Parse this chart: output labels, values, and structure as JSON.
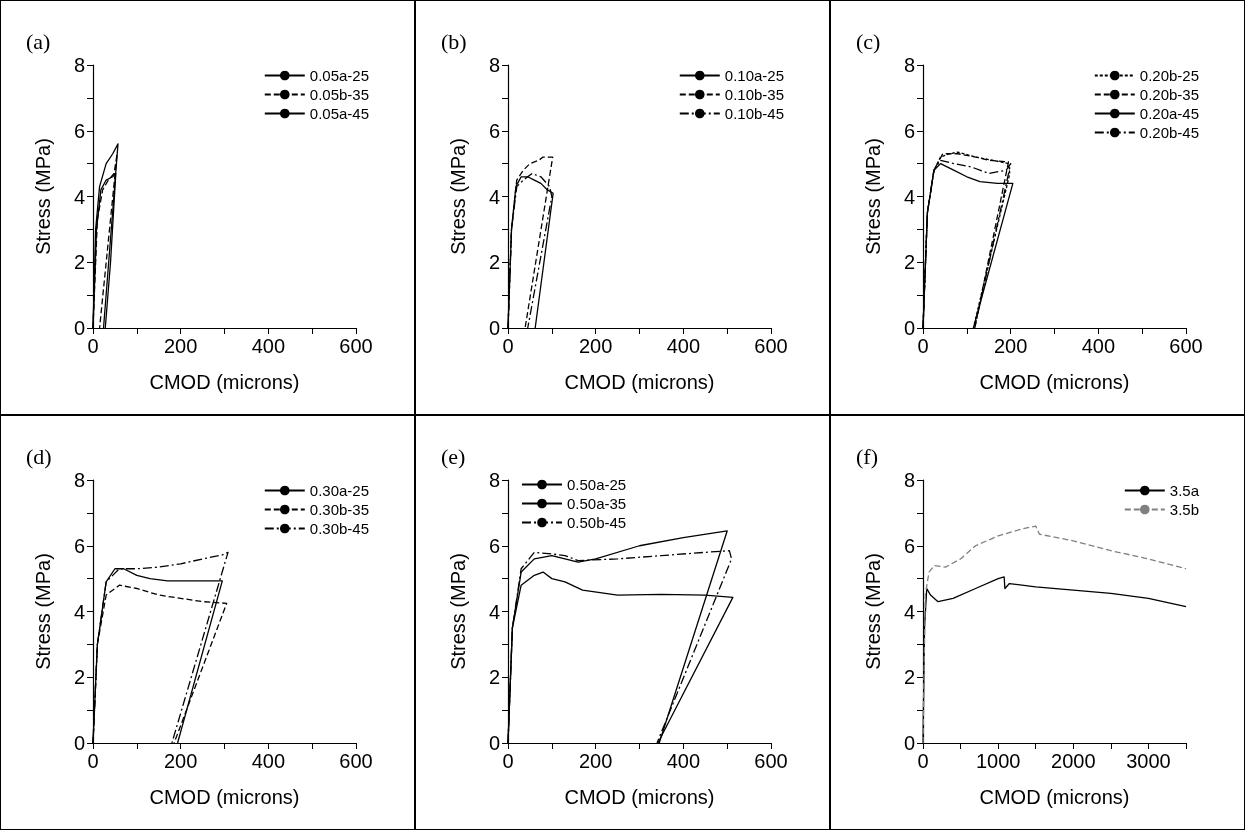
{
  "chart_data": [
    {
      "type": "line",
      "title": "(a)",
      "xlabel": "CMOD (microns)",
      "ylabel": "Stress (MPa)",
      "xlim": [
        0,
        600
      ],
      "ylim": [
        0,
        8
      ],
      "xticks": [
        0,
        {
          "value": 100,
          "label": null
        },
        200,
        {
          "value": 300,
          "label": null
        },
        400,
        {
          "value": 500,
          "label": null
        },
        600
      ],
      "yticks": [
        0,
        {
          "value": 1,
          "label": null
        },
        2,
        {
          "value": 3,
          "label": null
        },
        4,
        {
          "value": 5,
          "label": null
        },
        6,
        {
          "value": 7,
          "label": null
        },
        8
      ],
      "legend": "top right",
      "marker": "none",
      "series": [
        {
          "name": "0.05a-25",
          "color": "#000000",
          "line_style": "solid",
          "x": [
            0,
            8,
            18,
            30,
            45,
            52,
            40,
            28
          ],
          "values": [
            0,
            3,
            4.2,
            4.5,
            4.6,
            4.7,
            2,
            0
          ]
        },
        {
          "name": "0.05b-35",
          "color": "#000000",
          "line_style": "dashed",
          "x": [
            0,
            10,
            22,
            35,
            48,
            55,
            15
          ],
          "values": [
            0,
            3.3,
            4.2,
            4.5,
            4.7,
            5.3,
            0
          ]
        },
        {
          "name": "0.05a-45",
          "color": "#000000",
          "line_style": "solid",
          "x": [
            0,
            6,
            15,
            30,
            45,
            57,
            24
          ],
          "values": [
            0,
            3,
            4.3,
            5,
            5.3,
            5.6,
            0
          ]
        }
      ]
    },
    {
      "type": "line",
      "title": "(b)",
      "xlabel": "CMOD (microns)",
      "ylabel": "Stress (MPa)",
      "xlim": [
        0,
        600
      ],
      "ylim": [
        0,
        8
      ],
      "xticks": [
        0,
        {
          "value": 100,
          "label": null
        },
        200,
        {
          "value": 300,
          "label": null
        },
        400,
        {
          "value": 500,
          "label": null
        },
        600
      ],
      "yticks": [
        0,
        {
          "value": 1,
          "label": null
        },
        2,
        {
          "value": 3,
          "label": null
        },
        4,
        {
          "value": 5,
          "label": null
        },
        6,
        {
          "value": 7,
          "label": null
        },
        8
      ],
      "legend": "top right",
      "marker": "none",
      "series": [
        {
          "name": "0.10a-25",
          "color": "#000000",
          "line_style": "solid",
          "x": [
            0,
            8,
            18,
            30,
            45,
            60,
            75,
            90,
            103,
            62
          ],
          "values": [
            0,
            3,
            4.3,
            4.6,
            4.6,
            4.5,
            4.4,
            4.2,
            4.1,
            0
          ]
        },
        {
          "name": "0.10b-35",
          "color": "#000000",
          "line_style": "dashed",
          "x": [
            0,
            8,
            20,
            35,
            50,
            70,
            80,
            102,
            39
          ],
          "values": [
            0,
            3,
            4.5,
            4.8,
            5,
            5.1,
            5.2,
            5.2,
            0
          ]
        },
        {
          "name": "0.10b-45",
          "color": "#000000",
          "line_style": "dashdot",
          "x": [
            0,
            8,
            20,
            35,
            55,
            75,
            95,
            100,
            45
          ],
          "values": [
            0,
            3,
            4.3,
            4.5,
            4.7,
            4.6,
            4.3,
            4,
            0
          ]
        }
      ]
    },
    {
      "type": "line",
      "title": "(c)",
      "xlabel": "CMOD (microns)",
      "ylabel": "Stress (MPa)",
      "xlim": [
        0,
        600
      ],
      "ylim": [
        0,
        8
      ],
      "xticks": [
        0,
        {
          "value": 100,
          "label": null
        },
        200,
        {
          "value": 300,
          "label": null
        },
        400,
        {
          "value": 500,
          "label": null
        },
        600
      ],
      "yticks": [
        0,
        {
          "value": 1,
          "label": null
        },
        2,
        {
          "value": 3,
          "label": null
        },
        4,
        {
          "value": 5,
          "label": null
        },
        6,
        {
          "value": 7,
          "label": null
        },
        8
      ],
      "legend": "top right",
      "marker": "none",
      "series": [
        {
          "name": "0.20b-25",
          "color": "#000000",
          "line_style": "dotted",
          "x": [
            0,
            10,
            25,
            40,
            60,
            80,
            120,
            160,
            195,
            198,
            115
          ],
          "values": [
            0,
            3.5,
            4.8,
            5.2,
            5.3,
            5.35,
            5.2,
            5.1,
            5,
            4.7,
            0
          ]
        },
        {
          "name": "0.20b-35",
          "color": "#000000",
          "line_style": "dashed",
          "x": [
            0,
            10,
            25,
            45,
            80,
            120,
            150,
            195,
            118
          ],
          "values": [
            0,
            3.5,
            4.8,
            5.3,
            5.3,
            5.2,
            5.1,
            5.05,
            0
          ]
        },
        {
          "name": "0.20a-45",
          "color": "#000000",
          "line_style": "solid",
          "x": [
            0,
            10,
            25,
            40,
            70,
            100,
            130,
            170,
            205,
            115
          ],
          "values": [
            0,
            3.5,
            4.8,
            5,
            4.8,
            4.6,
            4.45,
            4.4,
            4.4,
            0
          ]
        },
        {
          "name": "0.20b-45",
          "color": "#000000",
          "line_style": "dashdot",
          "x": [
            0,
            10,
            25,
            40,
            70,
            110,
            150,
            190,
            200,
            118
          ],
          "values": [
            0,
            3.5,
            4.8,
            5.1,
            5,
            4.9,
            4.7,
            4.8,
            5,
            0
          ]
        }
      ]
    },
    {
      "type": "line",
      "title": "(d)",
      "xlabel": "CMOD (microns)",
      "ylabel": "Stress (MPa)",
      "xlim": [
        0,
        600
      ],
      "ylim": [
        0,
        8
      ],
      "xticks": [
        0,
        {
          "value": 100,
          "label": null
        },
        200,
        {
          "value": 300,
          "label": null
        },
        400,
        {
          "value": 500,
          "label": null
        },
        600
      ],
      "yticks": [
        0,
        {
          "value": 1,
          "label": null
        },
        2,
        {
          "value": 3,
          "label": null
        },
        4,
        {
          "value": 5,
          "label": null
        },
        6,
        {
          "value": 7,
          "label": null
        },
        8
      ],
      "legend": "top right",
      "marker": "none",
      "series": [
        {
          "name": "0.30a-25",
          "color": "#000000",
          "line_style": "solid",
          "x": [
            0,
            10,
            30,
            50,
            70,
            100,
            130,
            170,
            295,
            193
          ],
          "values": [
            0,
            3,
            4.9,
            5.3,
            5.3,
            5.1,
            5,
            4.93,
            4.93,
            0
          ]
        },
        {
          "name": "0.30b-35",
          "color": "#000000",
          "line_style": "dashed",
          "x": [
            0,
            10,
            30,
            60,
            100,
            150,
            200,
            250,
            305,
            185
          ],
          "values": [
            0,
            3,
            4.5,
            4.8,
            4.7,
            4.5,
            4.4,
            4.3,
            4.25,
            0
          ]
        },
        {
          "name": "0.30b-45",
          "color": "#000000",
          "line_style": "dashdot",
          "x": [
            0,
            10,
            30,
            60,
            100,
            150,
            200,
            250,
            295,
            308,
            180
          ],
          "values": [
            0,
            3,
            4.9,
            5.3,
            5.3,
            5.35,
            5.45,
            5.6,
            5.72,
            5.8,
            0
          ]
        }
      ]
    },
    {
      "type": "line",
      "title": "(e)",
      "xlabel": "CMOD (microns)",
      "ylabel": "Stress (MPa)",
      "xlim": [
        0,
        600
      ],
      "ylim": [
        0,
        8
      ],
      "xticks": [
        0,
        {
          "value": 100,
          "label": null
        },
        200,
        {
          "value": 300,
          "label": null
        },
        400,
        {
          "value": 500,
          "label": null
        },
        600
      ],
      "yticks": [
        0,
        {
          "value": 1,
          "label": null
        },
        2,
        {
          "value": 3,
          "label": null
        },
        4,
        {
          "value": 5,
          "label": null
        },
        6,
        {
          "value": 7,
          "label": null
        },
        8
      ],
      "legend": "top left",
      "marker": "none",
      "series": [
        {
          "name": "0.50a-25",
          "color": "#000000",
          "line_style": "solid",
          "x": [
            0,
            10,
            30,
            60,
            100,
            130,
            160,
            200,
            300,
            400,
            500,
            345
          ],
          "values": [
            0,
            3.5,
            5.2,
            5.6,
            5.7,
            5.6,
            5.5,
            5.6,
            6,
            6.25,
            6.45,
            0
          ]
        },
        {
          "name": "0.50a-35",
          "color": "#000000",
          "line_style": "solid",
          "x": [
            0,
            10,
            30,
            60,
            80,
            100,
            130,
            170,
            250,
            350,
            450,
            513,
            342
          ],
          "values": [
            0,
            3.5,
            4.8,
            5.1,
            5.2,
            5,
            4.9,
            4.65,
            4.5,
            4.52,
            4.5,
            4.43,
            0
          ]
        },
        {
          "name": "0.50b-45",
          "color": "#000000",
          "line_style": "dashdot",
          "x": [
            0,
            10,
            30,
            60,
            100,
            130,
            160,
            250,
            350,
            450,
            505,
            510,
            340
          ],
          "values": [
            0,
            3.5,
            5.3,
            5.8,
            5.75,
            5.7,
            5.55,
            5.6,
            5.7,
            5.8,
            5.85,
            5.6,
            0
          ]
        }
      ]
    },
    {
      "type": "line",
      "title": "(f)",
      "xlabel": "CMOD (microns)",
      "ylabel": "Stress (MPa)",
      "xlim": [
        0,
        3500
      ],
      "ylim": [
        0,
        8
      ],
      "xticks": [
        0,
        {
          "value": 500,
          "label": null
        },
        1000,
        {
          "value": 1500,
          "label": null
        },
        2000,
        {
          "value": 2500,
          "label": null
        },
        3000,
        {
          "value": 3500,
          "label": null
        }
      ],
      "yticks": [
        0,
        {
          "value": 1,
          "label": null
        },
        2,
        {
          "value": 3,
          "label": null
        },
        4,
        {
          "value": 5,
          "label": null
        },
        6,
        {
          "value": 7,
          "label": null
        },
        8
      ],
      "legend": "top right",
      "marker": "none",
      "series": [
        {
          "name": "3.5a",
          "color": "#000000",
          "line_style": "solid",
          "x": [
            0,
            20,
            50,
            100,
            200,
            400,
            700,
            1000,
            1080,
            1090,
            1150,
            1500,
            2000,
            2500,
            3000,
            3500
          ],
          "values": [
            0,
            3.5,
            4.7,
            4.5,
            4.3,
            4.4,
            4.7,
            5,
            5.05,
            4.7,
            4.85,
            4.75,
            4.65,
            4.55,
            4.4,
            4.15
          ]
        },
        {
          "name": "3.5b",
          "color": "#808080",
          "line_style": "dashed",
          "x": [
            0,
            30,
            80,
            150,
            300,
            500,
            700,
            1000,
            1300,
            1500,
            1550,
            2000,
            2500,
            3000,
            3500
          ],
          "values": [
            0,
            4.5,
            5.2,
            5.4,
            5.35,
            5.6,
            6,
            6.3,
            6.5,
            6.6,
            6.35,
            6.15,
            5.85,
            5.6,
            5.3
          ]
        }
      ]
    }
  ]
}
